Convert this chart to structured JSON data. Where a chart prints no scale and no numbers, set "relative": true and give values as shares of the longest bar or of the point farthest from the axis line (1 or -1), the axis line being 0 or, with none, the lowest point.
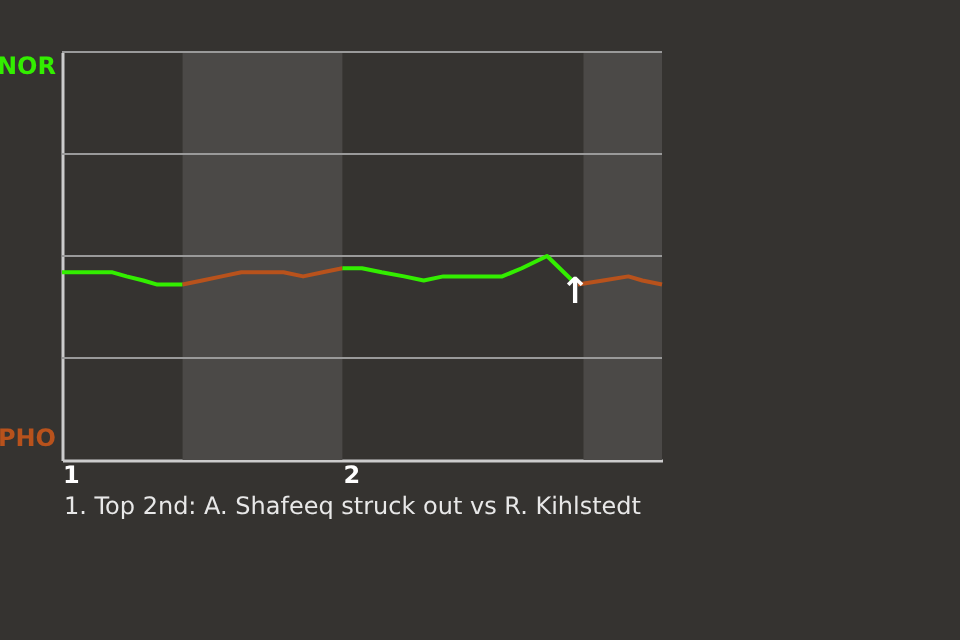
{
  "chart_data": {
    "type": "line",
    "relative": true,
    "xlim": [
      0.97,
      3.11
    ],
    "xticks": [
      1,
      2
    ],
    "ref_lines": [
      {
        "axis": "y",
        "value": 0.5,
        "color": "#9a9a9a"
      },
      {
        "axis": "y",
        "value": 1,
        "color": "#9a9a9a"
      },
      {
        "axis": "y",
        "value": 1.5,
        "color": "#9a9a9a"
      },
      {
        "axis": "y",
        "value": 2,
        "color": "#9a9a9a"
      }
    ],
    "bands": [
      {
        "axis": "x",
        "from": 1.4,
        "to": 1.97,
        "color": "#4b4947"
      },
      {
        "axis": "x",
        "from": 2.83,
        "to": 3.11,
        "color": "#4b4947"
      }
    ],
    "series": [
      {
        "color": "#33ee00",
        "x": [
          0.97,
          1.11,
          1.15,
          1.2,
          1.26,
          1.31,
          1.4
        ],
        "values": [
          0.92,
          0.92,
          0.92,
          0.9,
          0.88,
          0.86,
          0.86
        ]
      },
      {
        "color": "#b8521c",
        "x": [
          1.4,
          1.47,
          1.54,
          1.61,
          1.69,
          1.76,
          1.83,
          1.9,
          1.97
        ],
        "values": [
          0.86,
          0.88,
          0.9,
          0.92,
          0.92,
          0.92,
          0.9,
          0.92,
          0.94
        ]
      },
      {
        "color": "#33ee00",
        "x": [
          1.97,
          2.04,
          2.11,
          2.19,
          2.26,
          2.33,
          2.4,
          2.54,
          2.61,
          2.7,
          2.79
        ],
        "values": [
          0.94,
          0.94,
          0.92,
          0.9,
          0.88,
          0.9,
          0.9,
          0.9,
          0.94,
          1,
          0.88
        ]
      },
      {
        "color": "#b8521c",
        "x": [
          2.81,
          2.9,
          2.99,
          3.04,
          3.11
        ],
        "values": [
          0.86,
          0.88,
          0.9,
          0.88,
          0.86
        ]
      }
    ],
    "annotations": [
      "NOR",
      "PHO",
      {
        "text": "↑",
        "x": 2.8,
        "y": 0.82
      },
      "1. Top 2nd: A. Shafeeq struck out vs R. Kihlstedt"
    ]
  }
}
